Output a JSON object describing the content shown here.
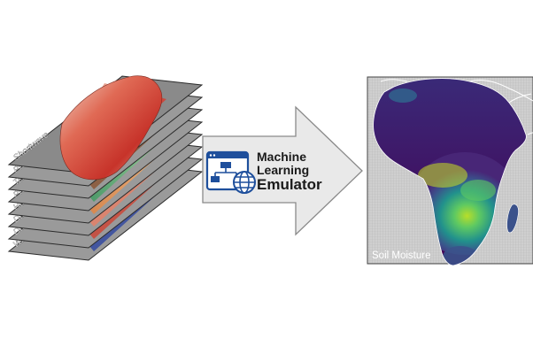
{
  "input_stack": {
    "layers": [
      "Shortwave",
      "Precipitation",
      "Temperature",
      "Pressure",
      "Humidity",
      "Daily Min",
      "Daily Max",
      "Wind Speed"
    ]
  },
  "emulator": {
    "line1": "Machine",
    "line2": "Learning",
    "line3": "Emulator",
    "icon": "flowchart-globe-icon"
  },
  "output_map": {
    "label": "Soil Moisture",
    "colormap": [
      "#440154",
      "#3b528b",
      "#21918c",
      "#5ec962",
      "#c8e020"
    ]
  },
  "colors": {
    "arrow_fill": "#e9e9e9",
    "arrow_stroke": "#8a8a8a",
    "icon_blue": "#1e4f9c"
  }
}
